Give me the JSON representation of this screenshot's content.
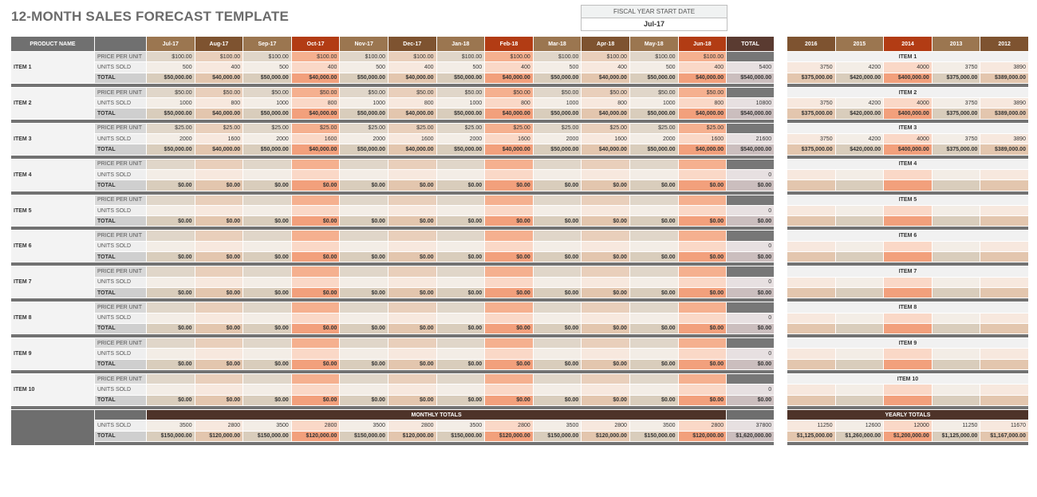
{
  "title": "12-MONTH SALES FORECAST TEMPLATE",
  "fiscal": {
    "label": "FISCAL YEAR START DATE",
    "value": "Jul-17"
  },
  "headers": {
    "product": "PRODUCT NAME",
    "total": "TOTAL",
    "months": [
      "Jul-17",
      "Aug-17",
      "Sep-17",
      "Oct-17",
      "Nov-17",
      "Dec-17",
      "Jan-18",
      "Feb-18",
      "Mar-18",
      "Apr-18",
      "May-18",
      "Jun-18"
    ],
    "years": [
      "2016",
      "2015",
      "2014",
      "2013",
      "2012"
    ]
  },
  "colors": {
    "month_types": [
      "tan",
      "brown",
      "tan",
      "red",
      "tan",
      "brown",
      "tan",
      "red",
      "tan",
      "brown",
      "tan",
      "red"
    ],
    "year_types": [
      "brown",
      "tan",
      "red",
      "tan",
      "brown"
    ],
    "accent_red": "#b23c14",
    "brown": "#7e5330",
    "tan": "#9b7650"
  },
  "row_labels": {
    "price": "PRICE PER UNIT",
    "units": "UNITS SOLD",
    "total": "TOTAL"
  },
  "items": [
    {
      "name": "ITEM 1",
      "price": [
        "$100.00",
        "$100.00",
        "$100.00",
        "$100.00",
        "$100.00",
        "$100.00",
        "$100.00",
        "$100.00",
        "$100.00",
        "$100.00",
        "$100.00",
        "$100.00"
      ],
      "units": [
        "500",
        "400",
        "500",
        "400",
        "500",
        "400",
        "500",
        "400",
        "500",
        "400",
        "500",
        "400"
      ],
      "totals": [
        "$50,000.00",
        "$40,000.00",
        "$50,000.00",
        "$40,000.00",
        "$50,000.00",
        "$40,000.00",
        "$50,000.00",
        "$40,000.00",
        "$50,000.00",
        "$40,000.00",
        "$50,000.00",
        "$40,000.00"
      ],
      "units_total": "5400",
      "grand_total": "$540,000.00",
      "year_units": [
        "3750",
        "4200",
        "4000",
        "3750",
        "3890"
      ],
      "year_totals": [
        "$375,000.00",
        "$420,000.00",
        "$400,000.00",
        "$375,000.00",
        "$389,000.00"
      ]
    },
    {
      "name": "ITEM 2",
      "price": [
        "$50.00",
        "$50.00",
        "$50.00",
        "$50.00",
        "$50.00",
        "$50.00",
        "$50.00",
        "$50.00",
        "$50.00",
        "$50.00",
        "$50.00",
        "$50.00"
      ],
      "units": [
        "1000",
        "800",
        "1000",
        "800",
        "1000",
        "800",
        "1000",
        "800",
        "1000",
        "800",
        "1000",
        "800"
      ],
      "totals": [
        "$50,000.00",
        "$40,000.00",
        "$50,000.00",
        "$40,000.00",
        "$50,000.00",
        "$40,000.00",
        "$50,000.00",
        "$40,000.00",
        "$50,000.00",
        "$40,000.00",
        "$50,000.00",
        "$40,000.00"
      ],
      "units_total": "10800",
      "grand_total": "$540,000.00",
      "year_units": [
        "3750",
        "4200",
        "4000",
        "3750",
        "3890"
      ],
      "year_totals": [
        "$375,000.00",
        "$420,000.00",
        "$400,000.00",
        "$375,000.00",
        "$389,000.00"
      ]
    },
    {
      "name": "ITEM 3",
      "price": [
        "$25.00",
        "$25.00",
        "$25.00",
        "$25.00",
        "$25.00",
        "$25.00",
        "$25.00",
        "$25.00",
        "$25.00",
        "$25.00",
        "$25.00",
        "$25.00"
      ],
      "units": [
        "2000",
        "1600",
        "2000",
        "1600",
        "2000",
        "1600",
        "2000",
        "1600",
        "2000",
        "1600",
        "2000",
        "1600"
      ],
      "totals": [
        "$50,000.00",
        "$40,000.00",
        "$50,000.00",
        "$40,000.00",
        "$50,000.00",
        "$40,000.00",
        "$50,000.00",
        "$40,000.00",
        "$50,000.00",
        "$40,000.00",
        "$50,000.00",
        "$40,000.00"
      ],
      "units_total": "21600",
      "grand_total": "$540,000.00",
      "year_units": [
        "3750",
        "4200",
        "4000",
        "3750",
        "3890"
      ],
      "year_totals": [
        "$375,000.00",
        "$420,000.00",
        "$400,000.00",
        "$375,000.00",
        "$389,000.00"
      ]
    },
    {
      "name": "ITEM 4",
      "price": [],
      "units": [],
      "totals": [
        "$0.00",
        "$0.00",
        "$0.00",
        "$0.00",
        "$0.00",
        "$0.00",
        "$0.00",
        "$0.00",
        "$0.00",
        "$0.00",
        "$0.00",
        "$0.00"
      ],
      "units_total": "0",
      "grand_total": "$0.00",
      "year_units": [],
      "year_totals": []
    },
    {
      "name": "ITEM 5",
      "price": [],
      "units": [],
      "totals": [
        "$0.00",
        "$0.00",
        "$0.00",
        "$0.00",
        "$0.00",
        "$0.00",
        "$0.00",
        "$0.00",
        "$0.00",
        "$0.00",
        "$0.00",
        "$0.00"
      ],
      "units_total": "0",
      "grand_total": "$0.00",
      "year_units": [],
      "year_totals": []
    },
    {
      "name": "ITEM 6",
      "price": [],
      "units": [],
      "totals": [
        "$0.00",
        "$0.00",
        "$0.00",
        "$0.00",
        "$0.00",
        "$0.00",
        "$0.00",
        "$0.00",
        "$0.00",
        "$0.00",
        "$0.00",
        "$0.00"
      ],
      "units_total": "0",
      "grand_total": "$0.00",
      "year_units": [],
      "year_totals": []
    },
    {
      "name": "ITEM 7",
      "price": [],
      "units": [],
      "totals": [
        "$0.00",
        "$0.00",
        "$0.00",
        "$0.00",
        "$0.00",
        "$0.00",
        "$0.00",
        "$0.00",
        "$0.00",
        "$0.00",
        "$0.00",
        "$0.00"
      ],
      "units_total": "0",
      "grand_total": "$0.00",
      "year_units": [],
      "year_totals": []
    },
    {
      "name": "ITEM 8",
      "price": [],
      "units": [],
      "totals": [
        "$0.00",
        "$0.00",
        "$0.00",
        "$0.00",
        "$0.00",
        "$0.00",
        "$0.00",
        "$0.00",
        "$0.00",
        "$0.00",
        "$0.00",
        "$0.00"
      ],
      "units_total": "0",
      "grand_total": "$0.00",
      "year_units": [],
      "year_totals": []
    },
    {
      "name": "ITEM 9",
      "price": [],
      "units": [],
      "totals": [
        "$0.00",
        "$0.00",
        "$0.00",
        "$0.00",
        "$0.00",
        "$0.00",
        "$0.00",
        "$0.00",
        "$0.00",
        "$0.00",
        "$0.00",
        "$0.00"
      ],
      "units_total": "0",
      "grand_total": "$0.00",
      "year_units": [],
      "year_totals": []
    },
    {
      "name": "ITEM 10",
      "price": [],
      "units": [],
      "totals": [
        "$0.00",
        "$0.00",
        "$0.00",
        "$0.00",
        "$0.00",
        "$0.00",
        "$0.00",
        "$0.00",
        "$0.00",
        "$0.00",
        "$0.00",
        "$0.00"
      ],
      "units_total": "0",
      "grand_total": "$0.00",
      "year_units": [],
      "year_totals": []
    }
  ],
  "monthly_totals": {
    "label": "MONTHLY TOTALS",
    "units": [
      "3500",
      "2800",
      "3500",
      "2800",
      "3500",
      "2800",
      "3500",
      "2800",
      "3500",
      "2800",
      "3500",
      "2800"
    ],
    "totals": [
      "$150,000.00",
      "$120,000.00",
      "$150,000.00",
      "$120,000.00",
      "$150,000.00",
      "$120,000.00",
      "$150,000.00",
      "$120,000.00",
      "$150,000.00",
      "$120,000.00",
      "$150,000.00",
      "$120,000.00"
    ],
    "units_total": "37800",
    "grand_total": "$1,620,000.00"
  },
  "yearly_totals": {
    "label": "YEARLY TOTALS",
    "units": [
      "11250",
      "12600",
      "12000",
      "11250",
      "11670"
    ],
    "totals": [
      "$1,125,000.00",
      "$1,260,000.00",
      "$1,200,000.00",
      "$1,125,000.00",
      "$1,167,000.00"
    ]
  }
}
